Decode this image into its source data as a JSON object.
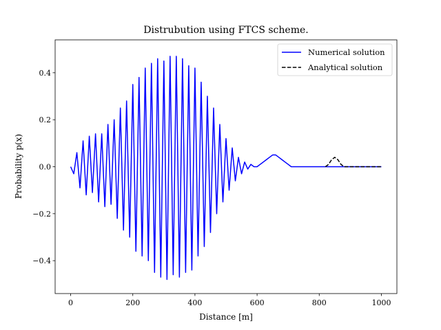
{
  "chart_data": {
    "type": "line",
    "title": "Distrubution using FTCS scheme.",
    "xlabel": "Distance [m]",
    "ylabel": "Probability p(x)",
    "xlim": [
      -50,
      1050
    ],
    "ylim": [
      -0.54,
      0.54
    ],
    "x_ticks": [
      0,
      200,
      400,
      600,
      800,
      1000
    ],
    "x_tick_labels": [
      "0",
      "200",
      "400",
      "600",
      "800",
      "1000"
    ],
    "y_ticks": [
      -0.4,
      -0.2,
      0.0,
      0.2,
      0.4
    ],
    "y_tick_labels": [
      "−0.4",
      "−0.2",
      "0.0",
      "0.2",
      "0.4"
    ],
    "grid": false,
    "legend_position": "top-right",
    "series": [
      {
        "name": "Numerical solution",
        "color": "#0000ff",
        "style": "solid",
        "x": [
          0,
          10,
          20,
          30,
          40,
          50,
          60,
          70,
          80,
          90,
          100,
          110,
          120,
          130,
          140,
          150,
          160,
          170,
          180,
          190,
          200,
          210,
          220,
          230,
          240,
          250,
          260,
          270,
          280,
          290,
          300,
          310,
          320,
          330,
          340,
          350,
          360,
          370,
          380,
          390,
          400,
          410,
          420,
          430,
          440,
          450,
          460,
          470,
          480,
          490,
          500,
          510,
          520,
          530,
          540,
          550,
          560,
          570,
          580,
          590,
          600,
          610,
          620,
          630,
          640,
          650,
          660,
          670,
          680,
          690,
          700,
          710,
          720,
          730,
          740,
          750,
          760,
          770,
          780,
          790,
          800,
          810,
          820,
          830,
          840,
          850,
          860,
          870,
          880,
          890,
          900,
          910,
          920,
          930,
          940,
          950,
          960,
          970,
          980,
          990,
          1000
        ],
        "y": [
          0.0,
          -0.03,
          0.06,
          -0.09,
          0.11,
          -0.12,
          0.13,
          -0.11,
          0.14,
          -0.15,
          0.14,
          -0.17,
          0.18,
          -0.16,
          0.2,
          -0.22,
          0.25,
          -0.27,
          0.28,
          -0.3,
          0.35,
          -0.36,
          0.38,
          -0.38,
          0.42,
          -0.4,
          0.44,
          -0.45,
          0.46,
          -0.47,
          0.45,
          -0.48,
          0.47,
          -0.46,
          0.47,
          -0.47,
          0.46,
          -0.45,
          0.43,
          -0.44,
          0.42,
          -0.38,
          0.36,
          -0.34,
          0.3,
          -0.28,
          0.25,
          -0.2,
          0.18,
          -0.15,
          0.12,
          -0.1,
          0.08,
          -0.06,
          0.04,
          -0.03,
          0.02,
          -0.01,
          0.01,
          0.0,
          0.0,
          0.01,
          0.02,
          0.03,
          0.04,
          0.05,
          0.05,
          0.04,
          0.03,
          0.02,
          0.01,
          0.0,
          0.0,
          0.0,
          0.0,
          0.0,
          0.0,
          0.0,
          0.0,
          0.0,
          0.0,
          0.0,
          0.0,
          0.0,
          0.0,
          0.0,
          0.0,
          0.0,
          0.0,
          0.0,
          0.0,
          0.0,
          0.0,
          0.0,
          0.0,
          0.0,
          0.0,
          0.0,
          0.0,
          0.0,
          0.0
        ]
      },
      {
        "name": "Analytical solution",
        "color": "#000000",
        "style": "dashed",
        "x": [
          820,
          830,
          840,
          850,
          860,
          870,
          880,
          890,
          900,
          950,
          1000
        ],
        "y": [
          0.0,
          0.01,
          0.03,
          0.04,
          0.03,
          0.01,
          0.0,
          0.0,
          0.0,
          0.0,
          0.0
        ]
      }
    ]
  }
}
